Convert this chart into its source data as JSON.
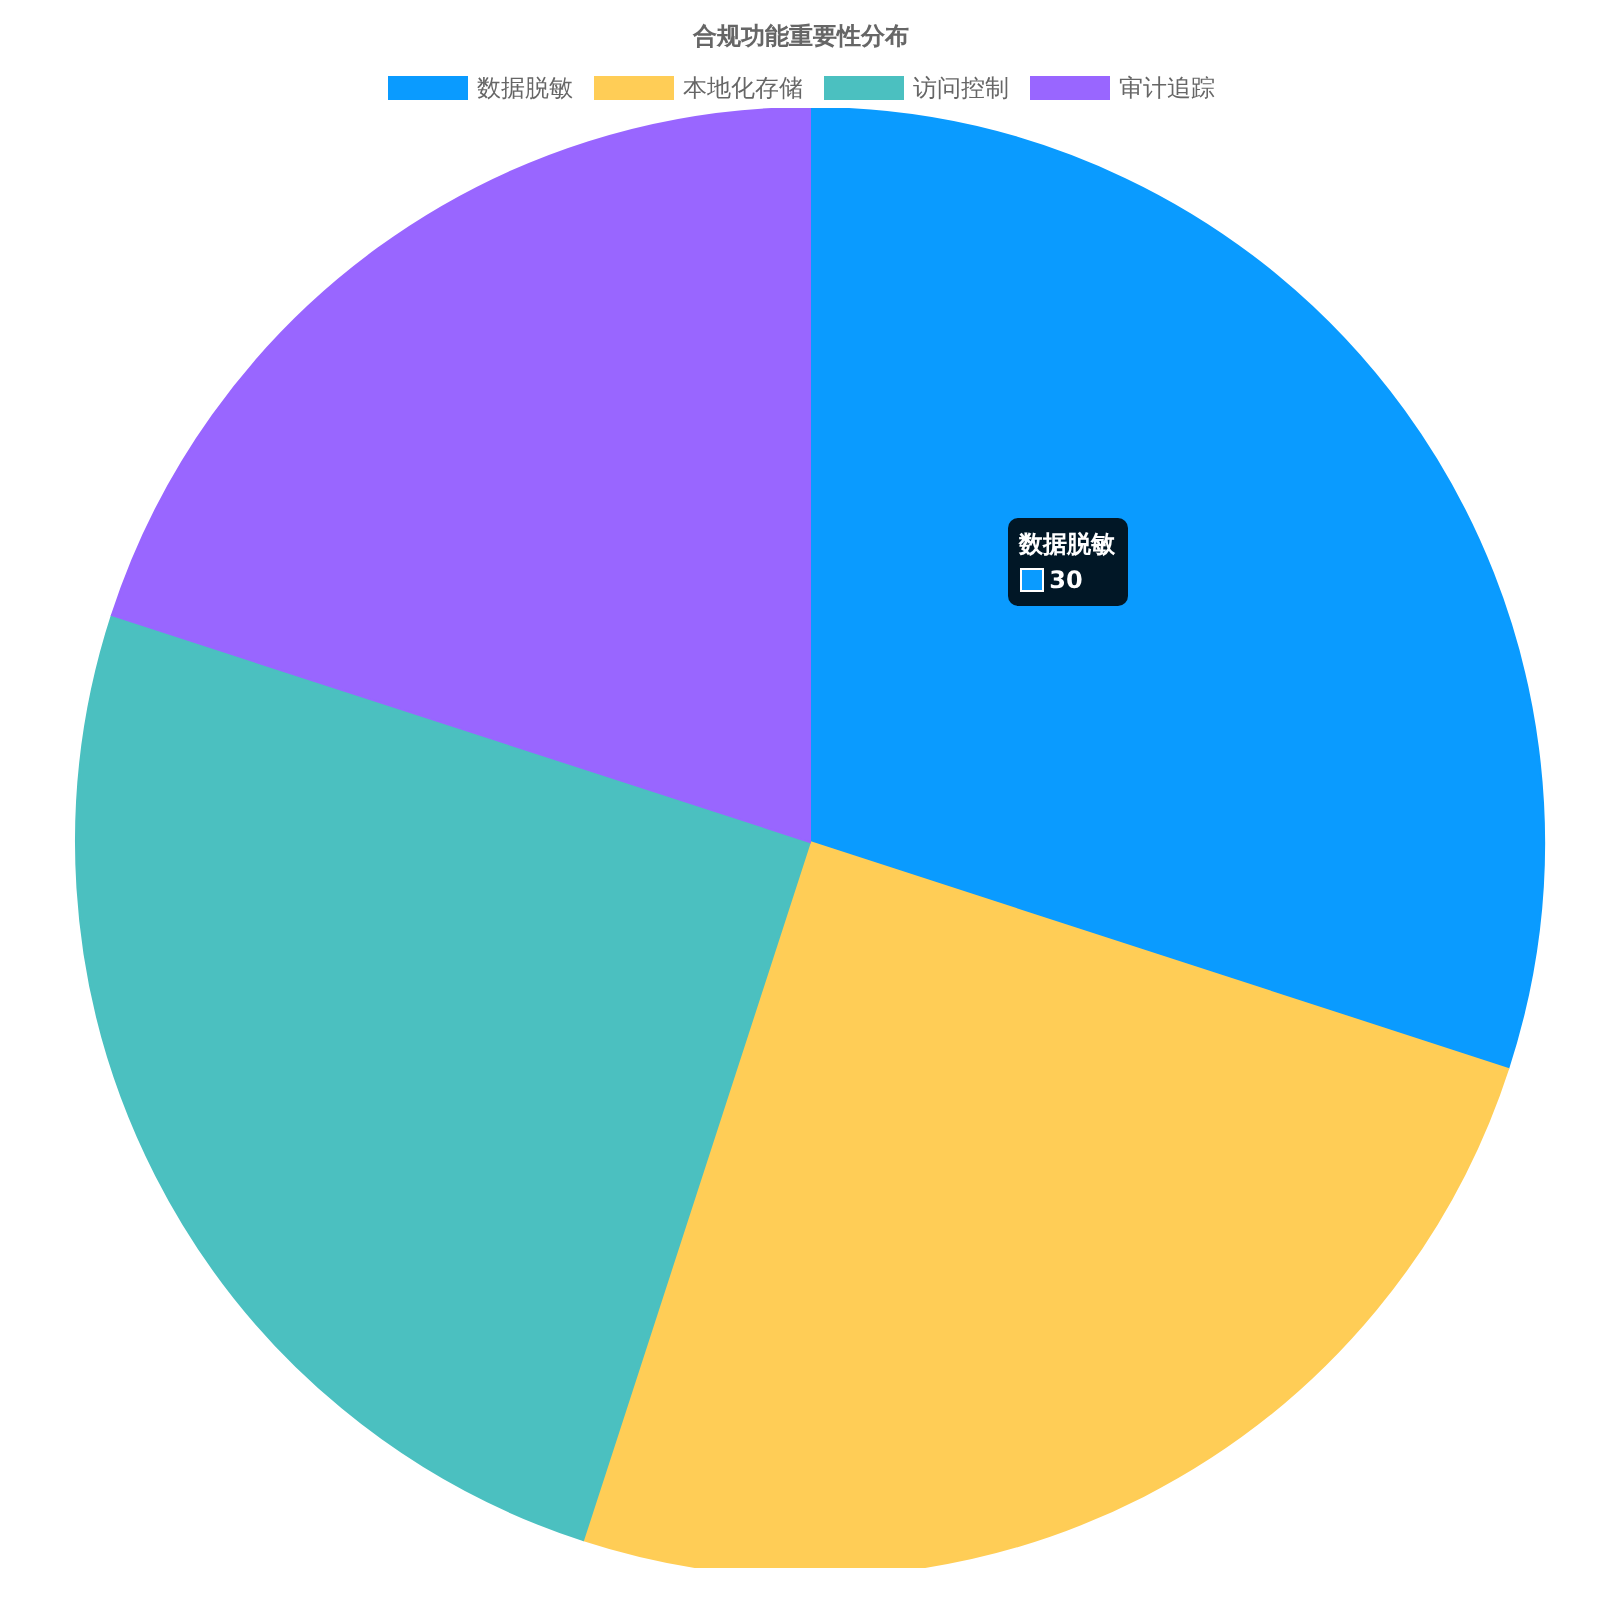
{
  "chart_data": {
    "type": "pie",
    "title": "合规功能重要性分布",
    "categories": [
      "数据脱敏",
      "本地化存储",
      "访问控制",
      "审计追踪"
    ],
    "values": [
      30,
      25,
      25,
      20
    ],
    "colors": [
      "#0a9bff",
      "#ffcd56",
      "#4bc0c0",
      "#9966ff"
    ],
    "value_labels": [
      "30",
      null,
      null,
      null
    ],
    "legend": "top"
  }
}
